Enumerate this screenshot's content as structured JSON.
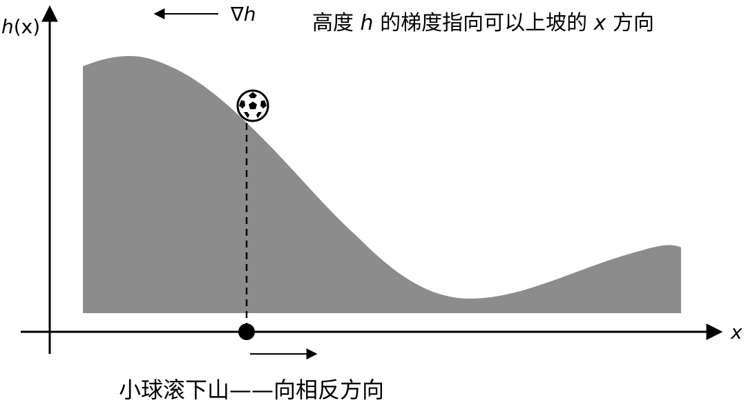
{
  "axes": {
    "y_label_main": "h",
    "y_label_arg": "(x)",
    "x_label": "x"
  },
  "gradient": {
    "symbol_nabla": "∇",
    "symbol_var": "h"
  },
  "caption_top": {
    "part1": "高度 ",
    "h": "h",
    "part2": " 的梯度指向可以上坡的 ",
    "x": "x",
    "part3": " 方向"
  },
  "caption_bottom": "小球滚下山——向相反方向",
  "colors": {
    "terrain": "#8c8c8c",
    "ink": "#000000",
    "background": "#ffffff"
  },
  "icons": [
    "soccer-ball-icon",
    "point-marker-icon",
    "arrow-left-icon",
    "arrow-right-icon"
  ]
}
